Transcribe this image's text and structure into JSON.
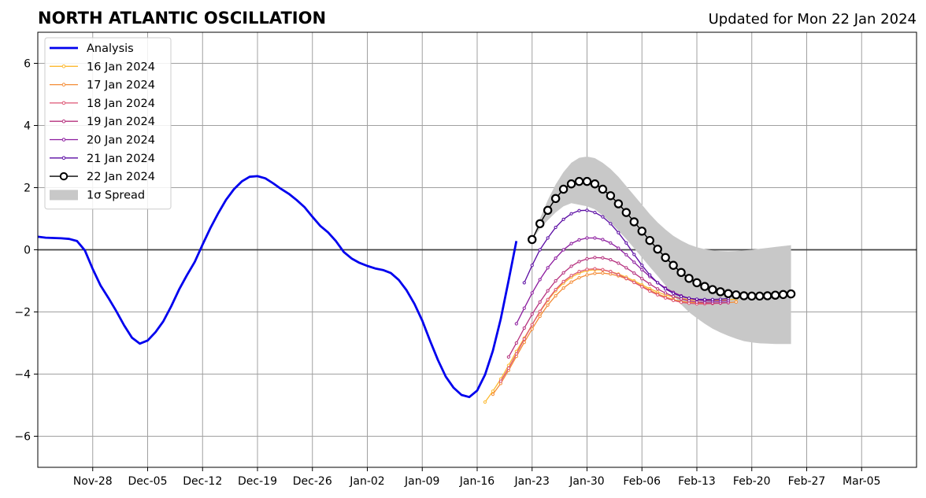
{
  "chart_data": {
    "type": "line",
    "title": "NORTH ATLANTIC OSCILLATION",
    "subtitle": "Updated for Mon 22 Jan 2024",
    "xlabel": "",
    "ylabel": "",
    "x_range": [
      "2023-11-21",
      "2024-03-12"
    ],
    "ylim": [
      -7,
      7
    ],
    "yticks": [
      -6,
      -4,
      -2,
      0,
      2,
      4,
      6
    ],
    "ytick_labels": [
      "−6",
      "−4",
      "−2",
      "0",
      "2",
      "4",
      "6"
    ],
    "xticks": [
      "2023-11-28",
      "2023-12-05",
      "2023-12-12",
      "2023-12-19",
      "2023-12-26",
      "2024-01-02",
      "2024-01-09",
      "2024-01-16",
      "2024-01-23",
      "2024-01-30",
      "2024-02-06",
      "2024-02-13",
      "2024-02-20",
      "2024-02-27",
      "2024-03-05"
    ],
    "xtick_labels": [
      "Nov-28",
      "Dec-05",
      "Dec-12",
      "Dec-19",
      "Dec-26",
      "Jan-02",
      "Jan-09",
      "Jan-16",
      "Jan-23",
      "Jan-30",
      "Feb-06",
      "Feb-13",
      "Feb-20",
      "Feb-27",
      "Mar-05"
    ],
    "grid": true,
    "legend_position": "top-left",
    "analysis": {
      "name": "Analysis",
      "color": "#0000ee",
      "start_date": "2023-11-21",
      "values": [
        0.42,
        0.39,
        0.38,
        0.37,
        0.35,
        0.28,
        -0.02,
        -0.62,
        -1.15,
        -1.55,
        -1.97,
        -2.43,
        -2.83,
        -3.02,
        -2.92,
        -2.65,
        -2.3,
        -1.82,
        -1.28,
        -0.82,
        -0.39,
        0.17,
        0.7,
        1.18,
        1.61,
        1.95,
        2.2,
        2.35,
        2.37,
        2.3,
        2.14,
        1.96,
        1.8,
        1.6,
        1.37,
        1.06,
        0.77,
        0.56,
        0.28,
        -0.07,
        -0.28,
        -0.42,
        -0.52,
        -0.6,
        -0.65,
        -0.75,
        -0.97,
        -1.3,
        -1.74,
        -2.28,
        -2.93,
        -3.55,
        -4.08,
        -4.44,
        -4.67,
        -4.74,
        -4.53,
        -4.02,
        -3.25,
        -2.23,
        -0.99,
        0.28
      ]
    },
    "forecasts": [
      {
        "name": "16 Jan 2024",
        "color": "#fcb930",
        "start_date": "2024-01-17",
        "values": [
          -4.9,
          -4.55,
          -4.16,
          -3.72,
          -3.27,
          -2.84,
          -2.41,
          -2.0,
          -1.63,
          -1.32,
          -1.07,
          -0.88,
          -0.75,
          -0.67,
          -0.64,
          -0.65,
          -0.7,
          -0.78,
          -0.88,
          -1.0,
          -1.13,
          -1.25,
          -1.36,
          -1.45,
          -1.52,
          -1.57,
          -1.6,
          -1.62,
          -1.63,
          -1.63,
          -1.62,
          -1.61,
          -1.59
        ]
      },
      {
        "name": "17 Jan 2024",
        "color": "#f48c36",
        "start_date": "2024-01-18",
        "values": [
          -4.65,
          -4.3,
          -3.88,
          -3.43,
          -2.98,
          -2.55,
          -2.14,
          -1.78,
          -1.48,
          -1.23,
          -1.04,
          -0.9,
          -0.81,
          -0.76,
          -0.75,
          -0.78,
          -0.84,
          -0.93,
          -1.04,
          -1.17,
          -1.3,
          -1.42,
          -1.52,
          -1.6,
          -1.66,
          -1.69,
          -1.71,
          -1.72,
          -1.72,
          -1.71,
          -1.7,
          -1.68
        ]
      },
      {
        "name": "18 Jan 2024",
        "color": "#dd5573",
        "start_date": "2024-01-19",
        "values": [
          -4.23,
          -3.81,
          -3.35,
          -2.87,
          -2.41,
          -1.98,
          -1.6,
          -1.28,
          -1.02,
          -0.83,
          -0.7,
          -0.63,
          -0.61,
          -0.64,
          -0.7,
          -0.8,
          -0.92,
          -1.05,
          -1.19,
          -1.33,
          -1.45,
          -1.55,
          -1.63,
          -1.69,
          -1.72,
          -1.74,
          -1.74,
          -1.73,
          -1.72,
          -1.7
        ]
      },
      {
        "name": "19 Jan 2024",
        "color": "#b5307e",
        "start_date": "2024-01-20",
        "values": [
          -3.45,
          -3.0,
          -2.52,
          -2.07,
          -1.68,
          -1.32,
          -1.0,
          -0.74,
          -0.53,
          -0.38,
          -0.29,
          -0.25,
          -0.26,
          -0.32,
          -0.43,
          -0.58,
          -0.75,
          -0.93,
          -1.1,
          -1.26,
          -1.39,
          -1.5,
          -1.58,
          -1.64,
          -1.68,
          -1.7,
          -1.71,
          -1.71,
          -1.7
        ]
      },
      {
        "name": "20 Jan 2024",
        "color": "#8b1a9e",
        "start_date": "2024-01-21",
        "values": [
          -2.38,
          -1.88,
          -1.39,
          -0.96,
          -0.58,
          -0.27,
          0.0,
          0.2,
          0.32,
          0.38,
          0.38,
          0.33,
          0.22,
          0.05,
          -0.16,
          -0.4,
          -0.64,
          -0.86,
          -1.06,
          -1.23,
          -1.37,
          -1.48,
          -1.56,
          -1.61,
          -1.64,
          -1.65,
          -1.65,
          -1.64
        ]
      },
      {
        "name": "21 Jan 2024",
        "color": "#5a0ba3",
        "start_date": "2024-01-22",
        "values": [
          -1.06,
          -0.5,
          0.0,
          0.38,
          0.72,
          0.98,
          1.16,
          1.26,
          1.27,
          1.2,
          1.06,
          0.84,
          0.55,
          0.22,
          -0.15,
          -0.5,
          -0.81,
          -1.06,
          -1.26,
          -1.4,
          -1.5,
          -1.56,
          -1.59,
          -1.6,
          -1.6,
          -1.59,
          -1.57
        ]
      },
      {
        "name": "22 Jan 2024",
        "color": "#000000",
        "start_date": "2024-01-23",
        "values": [
          0.33,
          0.84,
          1.27,
          1.65,
          1.95,
          2.12,
          2.2,
          2.2,
          2.12,
          1.95,
          1.74,
          1.48,
          1.2,
          0.9,
          0.6,
          0.3,
          0.02,
          -0.25,
          -0.5,
          -0.73,
          -0.92,
          -1.06,
          -1.18,
          -1.28,
          -1.35,
          -1.41,
          -1.45,
          -1.48,
          -1.49,
          -1.49,
          -1.48,
          -1.46,
          -1.44,
          -1.42
        ]
      }
    ],
    "spread": {
      "name": "1σ Spread",
      "color": "#c8c8c8",
      "start_date": "2024-01-23",
      "upper": [
        0.35,
        1.0,
        1.6,
        2.1,
        2.5,
        2.8,
        2.96,
        3.0,
        2.95,
        2.8,
        2.6,
        2.35,
        2.05,
        1.75,
        1.45,
        1.15,
        0.88,
        0.65,
        0.45,
        0.3,
        0.17,
        0.08,
        0.02,
        -0.02,
        -0.04,
        -0.05,
        -0.04,
        -0.02,
        0.0,
        0.03,
        0.06,
        0.09,
        0.12,
        0.15
      ],
      "lower": [
        0.31,
        0.68,
        0.95,
        1.2,
        1.4,
        1.5,
        1.45,
        1.4,
        1.3,
        1.1,
        0.88,
        0.61,
        0.35,
        0.05,
        -0.25,
        -0.55,
        -0.84,
        -1.15,
        -1.45,
        -1.76,
        -2.01,
        -2.2,
        -2.38,
        -2.54,
        -2.66,
        -2.77,
        -2.86,
        -2.94,
        -2.98,
        -3.01,
        -3.02,
        -3.03,
        -3.03,
        -3.03
      ]
    }
  }
}
